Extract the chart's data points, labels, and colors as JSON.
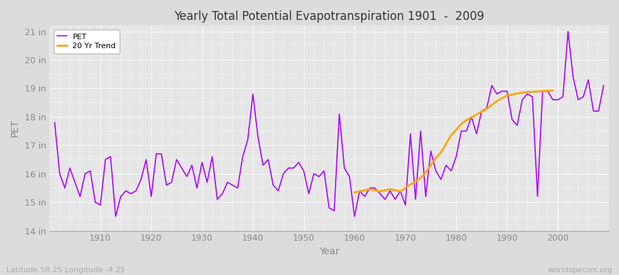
{
  "title": "Yearly Total Potential Evapotranspiration 1901  -  2009",
  "ylabel": "PET",
  "xlabel": "Year",
  "subtitle_lat": "Latitude 58.25 Longitude -4.25",
  "watermark": "worldspecies.org",
  "ylim": [
    14,
    21.2
  ],
  "yticks": [
    14,
    15,
    16,
    17,
    18,
    19,
    20,
    21
  ],
  "ytick_labels": [
    "14 in",
    "15 in",
    "16 in",
    "17 in",
    "18 in",
    "19 in",
    "20 in",
    "21 in"
  ],
  "pet_color": "#AA00FF",
  "trend_color": "#FFA500",
  "bg_color": "#DCDCDC",
  "plot_bg_color": "#E6E6E6",
  "years": [
    1901,
    1902,
    1903,
    1904,
    1905,
    1906,
    1907,
    1908,
    1909,
    1910,
    1911,
    1912,
    1913,
    1914,
    1915,
    1916,
    1917,
    1918,
    1919,
    1920,
    1921,
    1922,
    1923,
    1924,
    1925,
    1926,
    1927,
    1928,
    1929,
    1930,
    1931,
    1932,
    1933,
    1934,
    1935,
    1936,
    1937,
    1938,
    1939,
    1940,
    1941,
    1942,
    1943,
    1944,
    1945,
    1946,
    1947,
    1948,
    1949,
    1950,
    1951,
    1952,
    1953,
    1954,
    1955,
    1956,
    1957,
    1958,
    1959,
    1960,
    1961,
    1962,
    1963,
    1964,
    1965,
    1966,
    1967,
    1968,
    1969,
    1970,
    1971,
    1972,
    1973,
    1974,
    1975,
    1976,
    1977,
    1978,
    1979,
    1980,
    1981,
    1982,
    1983,
    1984,
    1985,
    1986,
    1987,
    1988,
    1989,
    1990,
    1991,
    1992,
    1993,
    1994,
    1995,
    1996,
    1997,
    1998,
    1999,
    2000,
    2001,
    2002,
    2003,
    2004,
    2005,
    2006,
    2007,
    2008,
    2009
  ],
  "pet_values": [
    17.8,
    16.0,
    15.5,
    16.2,
    15.7,
    15.2,
    16.0,
    16.1,
    15.0,
    14.9,
    16.5,
    16.6,
    14.5,
    15.2,
    15.4,
    15.3,
    15.4,
    15.8,
    16.5,
    15.2,
    16.7,
    16.7,
    15.6,
    15.7,
    16.5,
    16.2,
    15.9,
    16.3,
    15.5,
    16.4,
    15.7,
    16.6,
    15.1,
    15.3,
    15.7,
    15.6,
    15.5,
    16.6,
    17.2,
    18.8,
    17.3,
    16.3,
    16.5,
    15.6,
    15.4,
    16.0,
    16.2,
    16.2,
    16.4,
    16.1,
    15.3,
    16.0,
    15.9,
    16.1,
    14.8,
    14.7,
    18.1,
    16.2,
    15.9,
    14.5,
    15.4,
    15.2,
    15.5,
    15.5,
    15.3,
    15.1,
    15.4,
    15.1,
    15.4,
    14.9,
    17.4,
    15.1,
    17.5,
    15.2,
    16.8,
    16.1,
    15.8,
    16.3,
    16.1,
    16.6,
    17.5,
    17.5,
    18.0,
    17.4,
    18.2,
    18.3,
    19.1,
    18.8,
    18.9,
    18.9,
    17.9,
    17.7,
    18.6,
    18.8,
    18.7,
    15.2,
    18.9,
    18.9,
    18.6,
    18.6,
    18.7,
    21.0,
    19.4,
    18.6,
    18.7,
    19.3,
    18.2,
    18.2,
    19.1
  ],
  "trend_start_year": 1960,
  "trend_end_year": 1999,
  "trend_values": [
    15.35,
    15.38,
    15.42,
    15.46,
    15.42,
    15.38,
    15.42,
    15.46,
    15.42,
    15.38,
    15.5,
    15.62,
    15.72,
    15.85,
    16.05,
    16.3,
    16.55,
    16.75,
    17.05,
    17.35,
    17.55,
    17.75,
    17.88,
    17.98,
    18.08,
    18.18,
    18.28,
    18.42,
    18.55,
    18.65,
    18.75,
    18.78,
    18.82,
    18.85,
    18.87,
    18.88,
    18.89,
    18.9,
    18.91,
    18.92
  ],
  "legend_loc": "upper left",
  "pet_linewidth": 1.2,
  "trend_linewidth": 2.0,
  "xlim_left": 1900,
  "xlim_right": 2010,
  "xtick_years": [
    1910,
    1920,
    1930,
    1940,
    1950,
    1960,
    1970,
    1980,
    1990,
    2000
  ]
}
